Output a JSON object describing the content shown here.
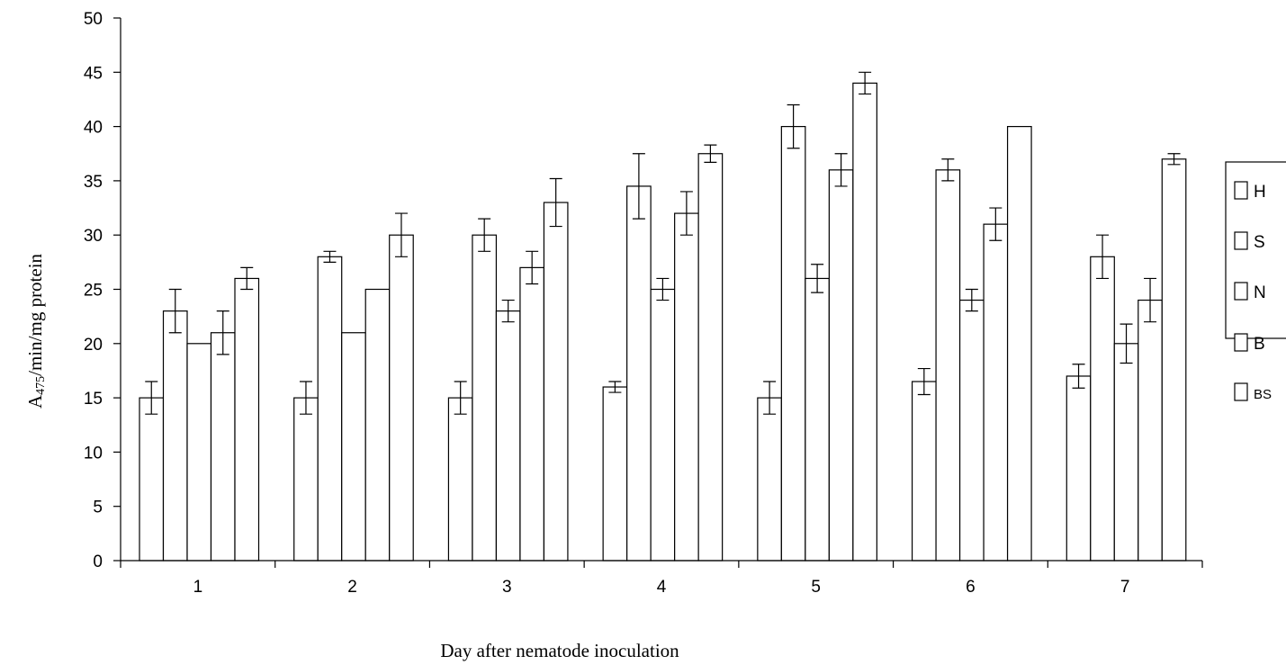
{
  "chart_data": {
    "type": "bar",
    "title": "",
    "xlabel": "Day after nematode inoculation",
    "ylabel_main": "A",
    "ylabel_sub": "475",
    "ylabel_rest": "/min/mg protein",
    "ylim": [
      0,
      50
    ],
    "yticks": [
      "0",
      "5",
      "10",
      "15",
      "20",
      "25",
      "30",
      "35",
      "40",
      "45",
      "50"
    ],
    "categories": [
      "1",
      "2",
      "3",
      "4",
      "5",
      "6",
      "7"
    ],
    "series": [
      {
        "name": "H",
        "values": [
          15,
          15,
          15,
          16,
          15,
          16.5,
          17
        ],
        "errors": [
          1.5,
          1.5,
          1.5,
          0.5,
          1.5,
          1.2,
          1.1
        ]
      },
      {
        "name": "S",
        "values": [
          23,
          28,
          30,
          34.5,
          40,
          36,
          28
        ],
        "errors": [
          2,
          0.5,
          1.5,
          3,
          2,
          1,
          2
        ]
      },
      {
        "name": "N",
        "values": [
          20,
          21,
          23,
          25,
          26,
          24,
          20
        ],
        "errors": [
          0,
          0,
          1,
          1,
          1.3,
          1,
          1.8
        ]
      },
      {
        "name": "B",
        "values": [
          21,
          25,
          27,
          32,
          36,
          31,
          24
        ],
        "errors": [
          2,
          0,
          1.5,
          2,
          1.5,
          1.5,
          2
        ]
      },
      {
        "name": "BS",
        "values": [
          26,
          30,
          33,
          37.5,
          44,
          40,
          37
        ],
        "errors": [
          1,
          2,
          2.2,
          0.8,
          1,
          0,
          0.5
        ]
      }
    ],
    "grid": false,
    "legend_position": "right"
  }
}
